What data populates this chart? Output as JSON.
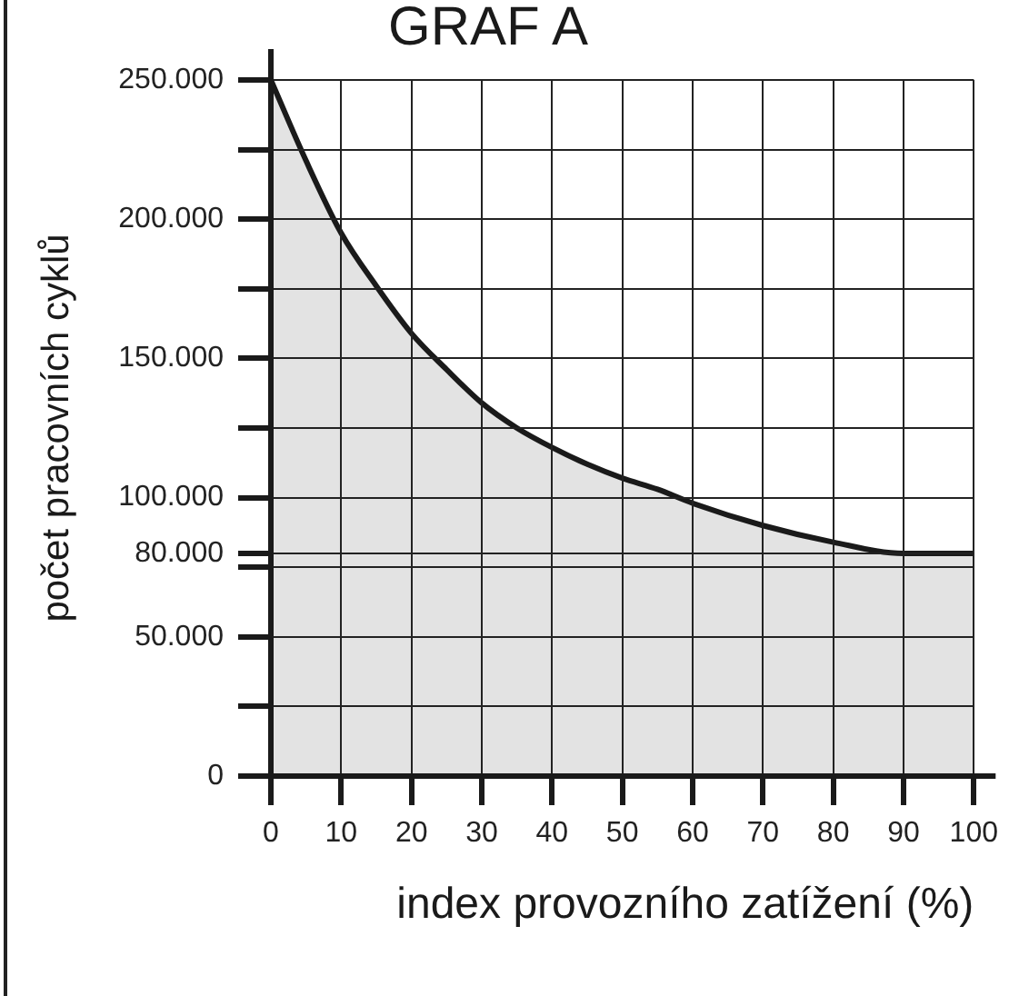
{
  "chart_data": {
    "type": "area",
    "title": "GRAF A",
    "xlabel": "index provozního zatížení (%)",
    "ylabel": "počet pracovních cyklů",
    "x": [
      0,
      5,
      10,
      15,
      20,
      25,
      30,
      35,
      40,
      45,
      50,
      55,
      60,
      70,
      80,
      90,
      100
    ],
    "values": [
      250000,
      221000,
      195000,
      176000,
      159000,
      146000,
      134000,
      125000,
      118000,
      112000,
      107000,
      103000,
      98000,
      90000,
      84000,
      80000,
      80000
    ],
    "color": "#e3e3e3",
    "xlim": [
      0,
      100
    ],
    "xticks": [
      0,
      10,
      20,
      30,
      40,
      50,
      60,
      70,
      80,
      90,
      100
    ],
    "ylim": [
      0,
      250000
    ],
    "yticks": [
      0,
      {
        "value": 25000,
        "label": null
      },
      {
        "value": 50000,
        "label": "50.000"
      },
      {
        "value": 75000,
        "label": null
      },
      {
        "value": 80000,
        "label": "80.000"
      },
      {
        "value": 100000,
        "label": "100.000"
      },
      {
        "value": 125000,
        "label": null
      },
      {
        "value": 150000,
        "label": "150.000"
      },
      {
        "value": 175000,
        "label": null
      },
      {
        "value": 200000,
        "label": "200.000"
      },
      {
        "value": 225000,
        "label": null
      },
      {
        "value": 250000,
        "label": "250.000"
      }
    ],
    "grid": true,
    "legend": false,
    "marker": "none",
    "line_style": "solid"
  }
}
